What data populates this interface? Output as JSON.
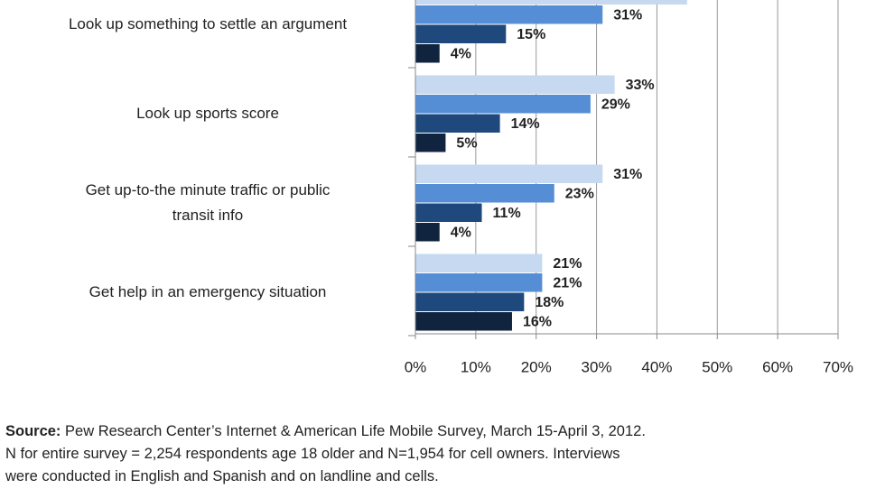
{
  "chart_data": {
    "type": "bar",
    "orientation": "horizontal",
    "categories": [
      "Look up something to settle an argument",
      "Look up sports score",
      "Get up-to-the minute traffic or public\ntransit info",
      "Get help in an emergency situation"
    ],
    "series": [
      {
        "color": "#c6d9f1",
        "values": [
          45,
          33,
          31,
          21
        ],
        "value_labels": [
          null,
          "33%",
          "31%",
          "21%"
        ]
      },
      {
        "color": "#558ed5",
        "values": [
          31,
          29,
          23,
          21
        ],
        "value_labels": [
          "31%",
          "29%",
          "23%",
          "21%"
        ]
      },
      {
        "color": "#1f497d",
        "values": [
          15,
          14,
          11,
          18
        ],
        "value_labels": [
          "15%",
          "14%",
          "11%",
          "18%"
        ]
      },
      {
        "color": "#10243f",
        "values": [
          4,
          5,
          4,
          16
        ],
        "value_labels": [
          "4%",
          "5%",
          "4%",
          "16%"
        ]
      }
    ],
    "xlim": [
      0,
      70
    ],
    "xticks": [
      {
        "value": 0,
        "label": "0%"
      },
      {
        "value": 10,
        "label": "10%"
      },
      {
        "value": 20,
        "label": "20%"
      },
      {
        "value": 30,
        "label": "30%"
      },
      {
        "value": 40,
        "label": "40%"
      },
      {
        "value": 50,
        "label": "50%"
      },
      {
        "value": 60,
        "label": "60%"
      },
      {
        "value": 70,
        "label": "70%"
      }
    ],
    "grid": true,
    "source_label": "Source:",
    "source": " Pew Research Center’s Internet & American Life Mobile Survey, March 15-April 3, 2012.\nN for entire survey = 2,254 respondents age 18 older and N=1,954 for cell owners. Interviews\nwere conducted in English and Spanish and on landline and cells."
  }
}
